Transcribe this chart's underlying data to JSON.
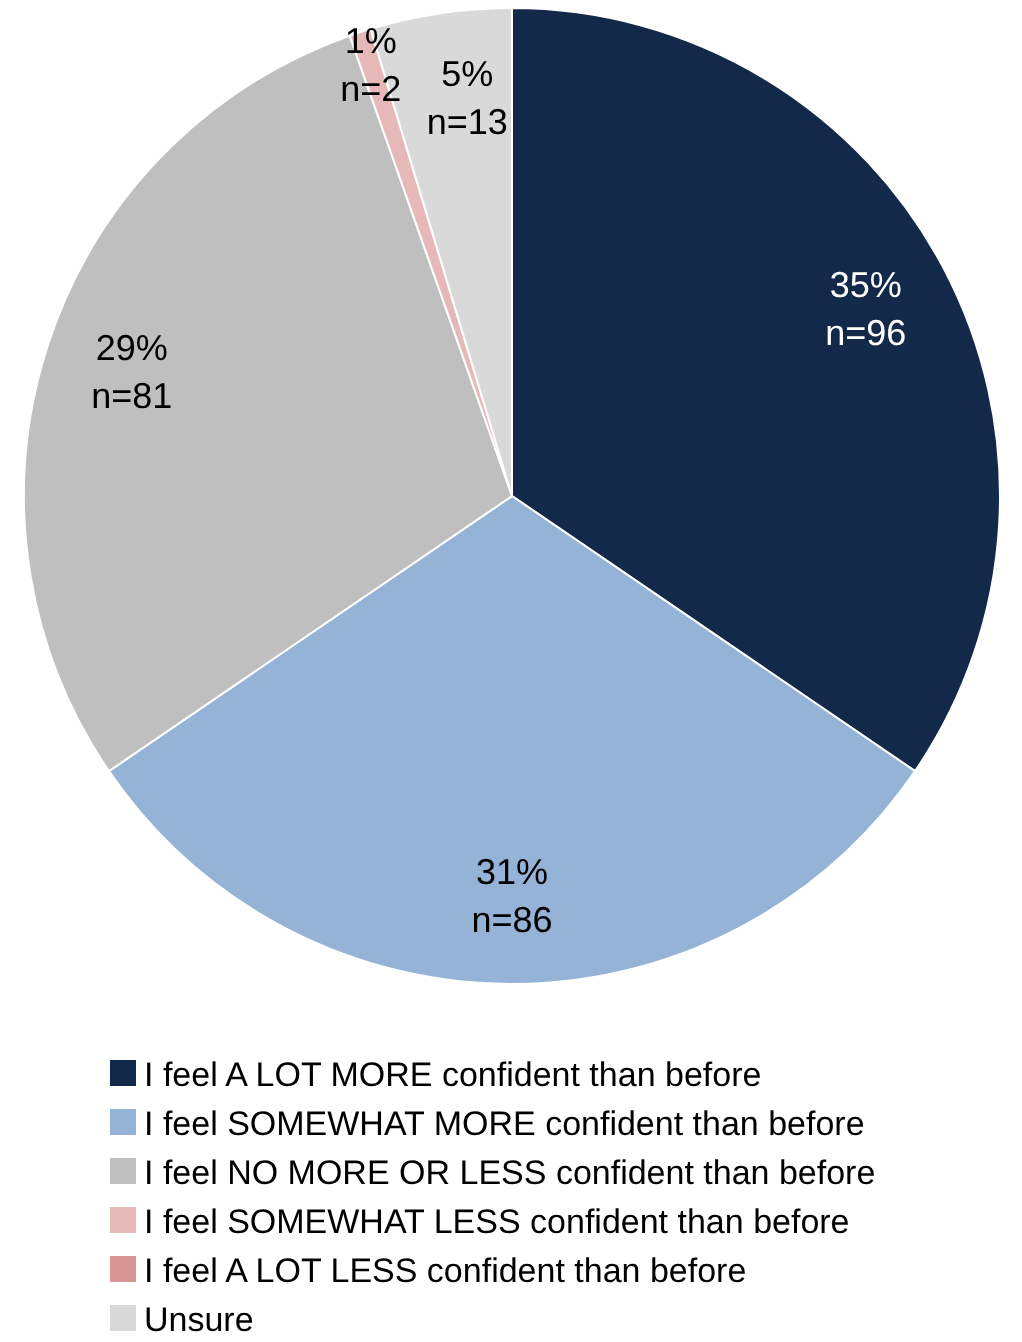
{
  "chart_data": {
    "type": "pie",
    "categories": [
      "I feel A LOT MORE confident than before",
      "I feel SOMEWHAT MORE confident than before",
      "I feel NO MORE OR LESS confident than before",
      "I feel SOMEWHAT LESS confident than before",
      "I feel A LOT LESS confident than before",
      "Unsure"
    ],
    "values": [
      96,
      86,
      81,
      2,
      0,
      13
    ],
    "colors": [
      "#12294a",
      "#95b3d7",
      "#bfbfbf",
      "#e6b9b8",
      "#d99694",
      "#d9d9d9"
    ],
    "value_labels": [
      "35%\nn=96",
      "31%\nn=86",
      "29%\nn=81",
      "1%\nn=2",
      null,
      "5%\nn=13"
    ],
    "legend": "bottom"
  }
}
